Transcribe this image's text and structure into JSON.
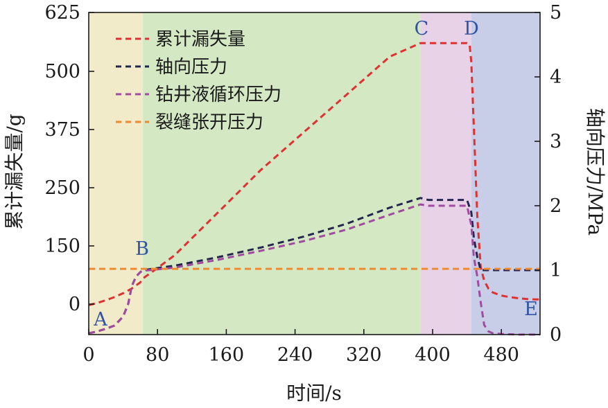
{
  "chart_data": {
    "type": "line",
    "xlabel": "时间/s",
    "ylabel_left": "累计漏失量/g",
    "ylabel_right": "轴向压力/MPa",
    "xlim": [
      0,
      525
    ],
    "ylim_left": [
      -60,
      625
    ],
    "ylim_right": [
      0,
      5
    ],
    "x_ticks": [
      0,
      80,
      160,
      240,
      320,
      400,
      480
    ],
    "y_left_ticks": [
      0,
      150,
      250,
      375,
      500,
      625
    ],
    "y_right_ticks": [
      0,
      1,
      2,
      3,
      4,
      5
    ],
    "grid": false,
    "legend_position": "top-left",
    "phases": [
      {
        "label": "A",
        "x_start": 0,
        "x_end": 63,
        "color": "#f2ebc9"
      },
      {
        "label": "B",
        "x_start": 63,
        "x_end": 386,
        "color": "#d4e8c4"
      },
      {
        "label": "C",
        "x_start": 386,
        "x_end": 445,
        "color": "#e8d2e7"
      },
      {
        "label": "D",
        "x_start": 445,
        "x_end": 525,
        "color": "#c8cde8"
      }
    ],
    "annotations": [
      {
        "text": "A",
        "x": 14,
        "y": 0.2
      },
      {
        "text": "B",
        "x": 63,
        "y": 1.3
      },
      {
        "text": "C",
        "x": 386,
        "y": 4.7
      },
      {
        "text": "D",
        "x": 445,
        "y": 4.7
      },
      {
        "text": "E",
        "x": 515,
        "y": 0.38
      }
    ],
    "series": [
      {
        "name": "累计漏失量",
        "axis": "left",
        "color": "#e03030",
        "x": [
          0,
          10,
          20,
          30,
          40,
          50,
          60,
          63,
          80,
          100,
          150,
          200,
          250,
          300,
          350,
          386,
          395,
          410,
          425,
          440,
          443,
          445,
          448,
          452,
          456,
          460,
          465,
          470,
          480,
          490,
          500,
          510,
          520,
          525
        ],
        "y": [
          -2,
          3,
          10,
          18,
          28,
          40,
          56,
          66,
          93,
          126,
          207,
          288,
          369,
          450,
          531,
          560,
          560,
          560,
          560,
          560,
          558,
          520,
          380,
          200,
          95,
          60,
          40,
          30,
          22,
          18,
          15,
          13,
          12,
          12
        ]
      },
      {
        "name": "轴向压力",
        "axis": "right",
        "color": "#24254f",
        "x": [
          0,
          10,
          20,
          30,
          40,
          46,
          50,
          55,
          60,
          63,
          100,
          150,
          200,
          250,
          300,
          350,
          386,
          395,
          410,
          425,
          440,
          445,
          448,
          452,
          456,
          460,
          470,
          480,
          500,
          525
        ],
        "y": [
          0.02,
          0.05,
          0.09,
          0.14,
          0.28,
          0.48,
          0.75,
          0.9,
          0.97,
          1.0,
          1.07,
          1.2,
          1.35,
          1.52,
          1.72,
          1.97,
          2.12,
          2.09,
          2.09,
          2.09,
          2.09,
          1.9,
          1.5,
          1.2,
          1.0,
          1.0,
          1.0,
          1.0,
          1.0,
          1.0
        ]
      },
      {
        "name": "钻井液循环压力",
        "axis": "right",
        "color": "#a04aa0",
        "x": [
          0,
          10,
          20,
          30,
          40,
          46,
          50,
          55,
          60,
          63,
          100,
          150,
          200,
          250,
          300,
          350,
          386,
          395,
          410,
          425,
          440,
          445,
          448,
          452,
          456,
          460,
          465,
          470,
          480,
          500,
          525
        ],
        "y": [
          0.02,
          0.05,
          0.09,
          0.14,
          0.28,
          0.48,
          0.75,
          0.9,
          0.97,
          0.99,
          1.04,
          1.16,
          1.3,
          1.45,
          1.63,
          1.86,
          2.02,
          2.0,
          2.0,
          2.0,
          2.0,
          1.7,
          1.2,
          0.9,
          0.5,
          0.15,
          0.05,
          0.02,
          0.01,
          0.0,
          0.0
        ]
      },
      {
        "name": "裂缝张开压力",
        "axis": "right",
        "color": "#f08a2e",
        "x": [
          0,
          525
        ],
        "y": [
          1.02,
          1.02
        ]
      }
    ]
  }
}
